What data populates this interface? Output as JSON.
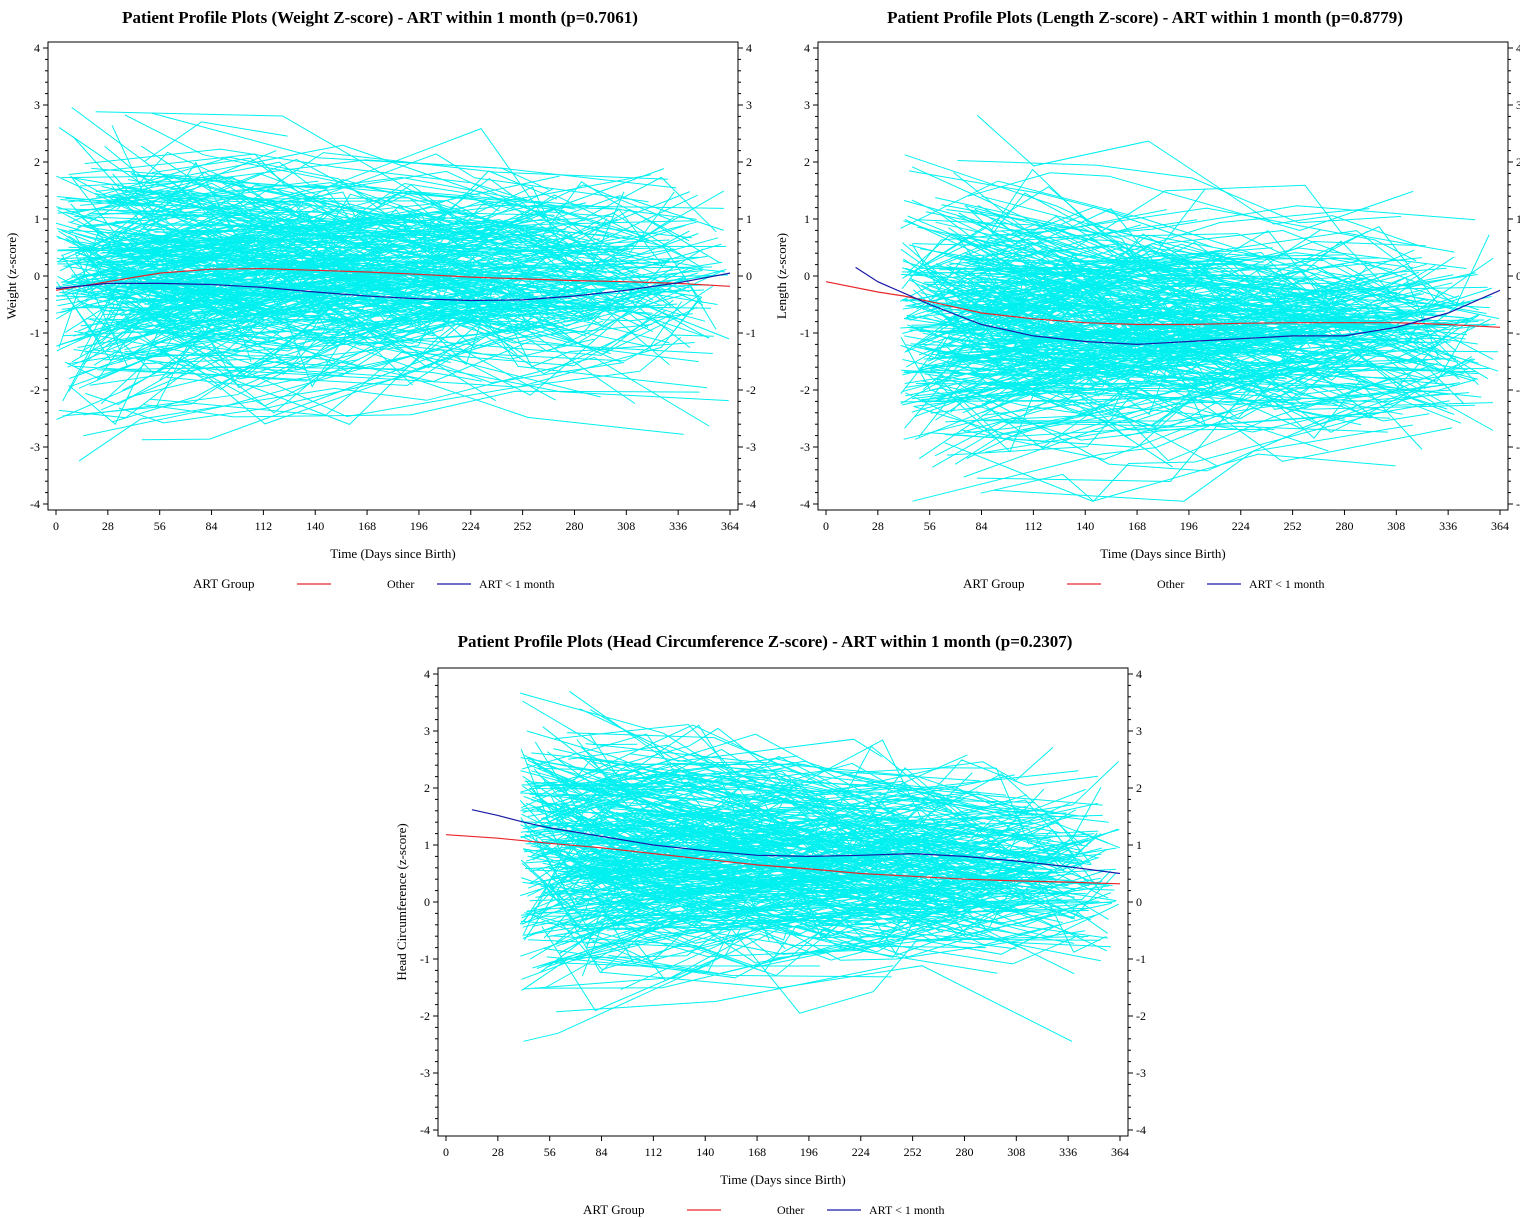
{
  "legend_title": "ART Group",
  "series_colors": {
    "Other": "#e8262b",
    "ART < 1 month": "#1a1aa6",
    "individual_profiles": "#00f0f0"
  },
  "chart_data": [
    {
      "id": "weight",
      "type": "line",
      "title": "Patient Profile Plots (Weight Z-score) - ART within 1 month (p=0.7061)",
      "xlabel": "Time (Days since Birth)",
      "ylabel": "Weight (z-score)",
      "xlim": [
        0,
        364
      ],
      "ylim": [
        -4,
        4
      ],
      "xticks": [
        0,
        28,
        56,
        84,
        112,
        140,
        168,
        196,
        224,
        252,
        280,
        308,
        336,
        364
      ],
      "yticks": [
        -4,
        -3,
        -2,
        -1,
        0,
        1,
        2,
        3,
        4
      ],
      "grid": false,
      "legend_placement": "bottom",
      "series": [
        {
          "name": "Other",
          "x": [
            0,
            28,
            56,
            84,
            112,
            140,
            168,
            196,
            224,
            252,
            280,
            308,
            336,
            364
          ],
          "y": [
            -0.25,
            -0.1,
            0.05,
            0.12,
            0.13,
            0.1,
            0.07,
            0.03,
            -0.02,
            -0.05,
            -0.08,
            -0.1,
            -0.13,
            -0.18
          ]
        },
        {
          "name": "ART < 1 month",
          "x": [
            0,
            28,
            56,
            84,
            112,
            140,
            168,
            196,
            224,
            252,
            280,
            308,
            336,
            364
          ],
          "y": [
            -0.22,
            -0.13,
            -0.13,
            -0.15,
            -0.2,
            -0.28,
            -0.35,
            -0.4,
            -0.43,
            -0.42,
            -0.35,
            -0.25,
            -0.12,
            0.05
          ]
        }
      ]
    },
    {
      "id": "length",
      "type": "line",
      "title": "Patient Profile Plots (Length Z-score) - ART within 1 month (p=0.8779)",
      "xlabel": "Time (Days since Birth)",
      "ylabel": "Length (z-score)",
      "xlim": [
        0,
        364
      ],
      "ylim": [
        -4,
        4
      ],
      "xticks": [
        0,
        28,
        56,
        84,
        112,
        140,
        168,
        196,
        224,
        252,
        280,
        308,
        336,
        364
      ],
      "yticks": [
        -4,
        -3,
        -2,
        -1,
        0,
        1,
        2,
        3,
        4
      ],
      "grid": false,
      "legend_placement": "bottom",
      "series": [
        {
          "name": "Other",
          "x": [
            0,
            28,
            42,
            56,
            84,
            112,
            140,
            168,
            196,
            224,
            252,
            280,
            308,
            336,
            364
          ],
          "y": [
            -0.1,
            -0.28,
            -0.35,
            -0.45,
            -0.65,
            -0.75,
            -0.82,
            -0.85,
            -0.85,
            -0.83,
            -0.82,
            -0.82,
            -0.82,
            -0.85,
            -0.9
          ]
        },
        {
          "name": "ART < 1 month",
          "x": [
            16,
            28,
            42,
            56,
            84,
            112,
            140,
            168,
            196,
            224,
            252,
            280,
            308,
            336,
            364
          ],
          "y": [
            0.15,
            -0.1,
            -0.3,
            -0.5,
            -0.85,
            -1.05,
            -1.15,
            -1.2,
            -1.15,
            -1.1,
            -1.05,
            -1.05,
            -0.9,
            -0.65,
            -0.25
          ]
        }
      ]
    },
    {
      "id": "head",
      "type": "line",
      "title": "Patient Profile Plots (Head Circumference Z-score) - ART within 1 month (p=0.2307)",
      "xlabel": "Time (Days since Birth)",
      "ylabel": "Head Circumference (z-score)",
      "xlim": [
        0,
        364
      ],
      "ylim": [
        -4,
        4
      ],
      "xticks": [
        0,
        28,
        56,
        84,
        112,
        140,
        168,
        196,
        224,
        252,
        280,
        308,
        336,
        364
      ],
      "yticks": [
        -4,
        -3,
        -2,
        -1,
        0,
        1,
        2,
        3,
        4
      ],
      "grid": false,
      "legend_placement": "bottom",
      "series": [
        {
          "name": "Other",
          "x": [
            0,
            28,
            56,
            84,
            112,
            140,
            168,
            196,
            224,
            252,
            280,
            308,
            336,
            364
          ],
          "y": [
            1.18,
            1.12,
            1.03,
            0.95,
            0.85,
            0.75,
            0.65,
            0.58,
            0.5,
            0.45,
            0.4,
            0.37,
            0.35,
            0.32
          ]
        },
        {
          "name": "ART < 1 month",
          "x": [
            14,
            28,
            42,
            56,
            84,
            112,
            140,
            168,
            196,
            224,
            252,
            280,
            308,
            336,
            364
          ],
          "y": [
            1.62,
            1.52,
            1.4,
            1.3,
            1.15,
            1.0,
            0.9,
            0.82,
            0.8,
            0.82,
            0.85,
            0.8,
            0.72,
            0.62,
            0.5
          ]
        }
      ]
    }
  ]
}
